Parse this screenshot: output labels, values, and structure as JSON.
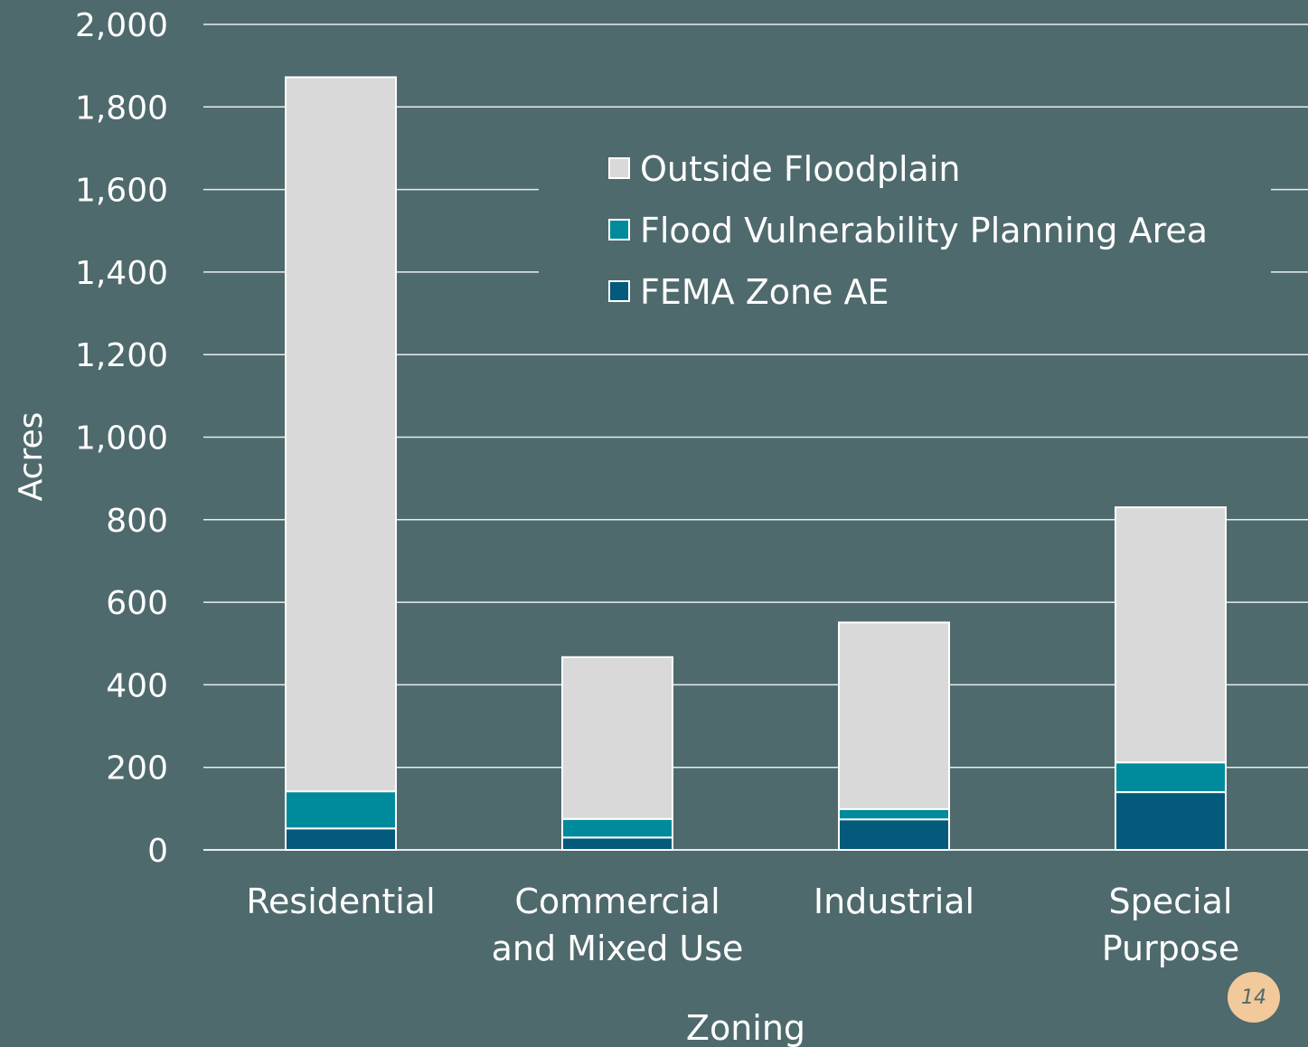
{
  "chart_data": {
    "type": "bar",
    "stacked": true,
    "categories": [
      [
        "Residential"
      ],
      [
        "Commercial",
        "and Mixed Use"
      ],
      [
        "Industrial"
      ],
      [
        "Special",
        "Purpose"
      ]
    ],
    "series": [
      {
        "name": "FEMA Zone AE",
        "color": "#035a7a",
        "values": [
          52,
          30,
          74,
          140
        ]
      },
      {
        "name": "Flood Vulnerability Planning Area",
        "color": "#008b9c",
        "values": [
          90,
          45,
          25,
          72
        ]
      },
      {
        "name": "Outside Floodplain",
        "color": "#d9d9d9",
        "values": [
          1730,
          392,
          452,
          618
        ]
      }
    ],
    "legend_order": [
      2,
      1,
      0
    ],
    "legend_position": "top-right",
    "ylim": [
      0,
      2000
    ],
    "yticks": [
      0,
      200,
      400,
      600,
      800,
      1000,
      1200,
      1400,
      1600,
      1800,
      2000
    ],
    "ytick_labels": [
      "0",
      "200",
      "400",
      "600",
      "800",
      "1,000",
      "1,200",
      "1,400",
      "1,600",
      "1,800",
      "2,000"
    ],
    "ylabel": "Acres",
    "xlabel": "Zoning",
    "grid": true
  },
  "page_number": "14"
}
